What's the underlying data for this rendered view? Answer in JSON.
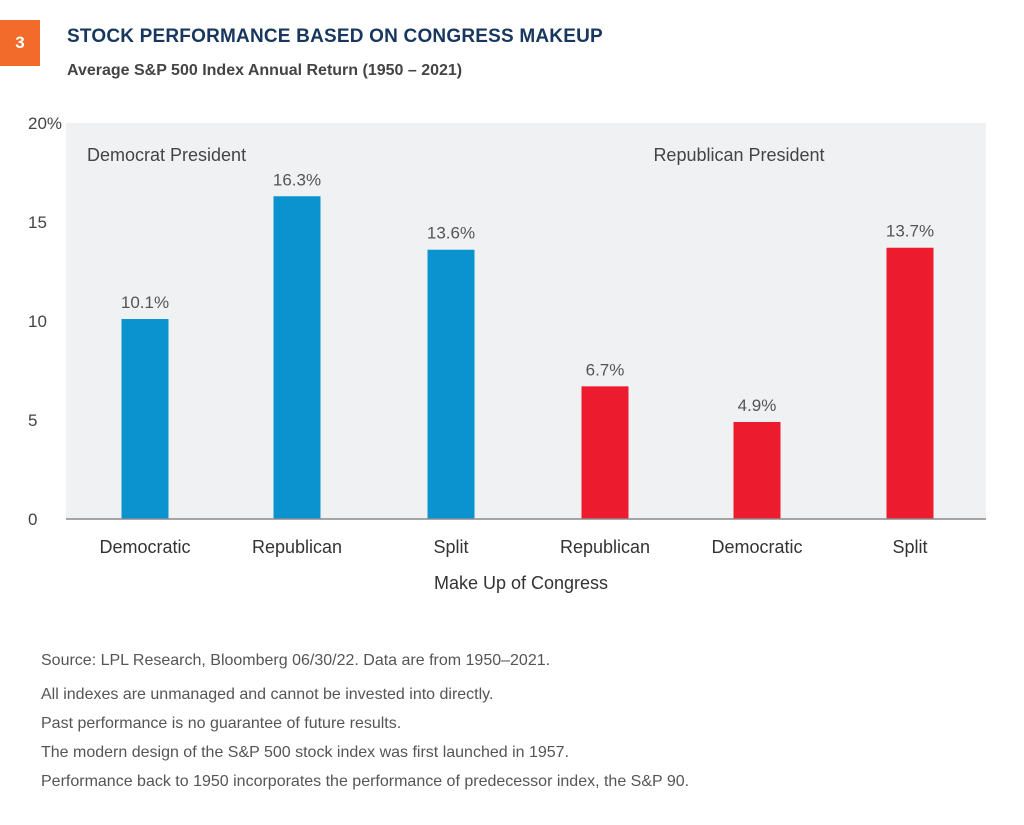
{
  "header": {
    "badge": "3",
    "title": "STOCK PERFORMANCE BASED ON CONGRESS MAKEUP",
    "subtitle": "Average S&P 500 Index Annual Return (1950 – 2021)"
  },
  "chart_data": {
    "type": "bar",
    "categories": [
      "Democratic",
      "Republican",
      "Split",
      "Republican",
      "Democratic",
      "Split"
    ],
    "values": [
      10.1,
      16.3,
      13.6,
      6.7,
      4.9,
      13.7
    ],
    "value_labels": [
      "10.1%",
      "16.3%",
      "13.6%",
      "6.7%",
      "4.9%",
      "13.7%"
    ],
    "groups": [
      {
        "label": "Democrat President",
        "color": "#0B93D0",
        "indices": [
          0,
          1,
          2
        ]
      },
      {
        "label": "Republican President",
        "color": "#EC1C2E",
        "indices": [
          3,
          4,
          5
        ]
      }
    ],
    "xlabel": "Make Up of Congress",
    "ylabel": "",
    "ylim": [
      0,
      20
    ],
    "yticks": [
      0,
      5,
      10,
      15,
      20
    ],
    "ytick_labels": [
      "0",
      "5",
      "10",
      "15",
      "20%"
    ],
    "grid": false,
    "plot_background": "#EFF1F3"
  },
  "footnotes": {
    "source": "Source: LPL Research, Bloomberg  06/30/22.  Data are from 1950–2021.",
    "notes": [
      "All indexes are unmanaged and cannot be invested into directly.",
      "Past performance is no guarantee of future results.",
      "The modern design of the S&P 500 stock index was first launched in 1957.",
      "Performance back to 1950 incorporates the performance of predecessor index, the S&P 90."
    ]
  }
}
